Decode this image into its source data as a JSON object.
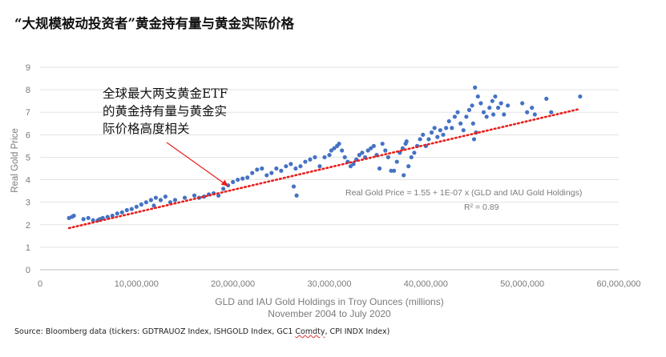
{
  "title": "“大规模被动投资者”黄金持有量与黄金实际价格",
  "source": {
    "prefix": "Source: Bloomberg data (tickers: GDTRAUOZ Index, ISHGOLD Index, GC1 ",
    "underlined": "Comdty",
    "suffix": ", CPI INDX Index)"
  },
  "chart_data": {
    "type": "scatter",
    "title": "“大规模被动投资者”黄金持有量与黄金实际价格",
    "xlabel": "GLD and IAU Gold Holdings in Troy Ounces (millions)",
    "xlabel2": "November 2004 to July 2020",
    "ylabel": "Real Gold Price",
    "xlim": [
      0,
      60000000
    ],
    "ylim": [
      0,
      9
    ],
    "xticks": [
      0,
      10000000,
      20000000,
      30000000,
      40000000,
      50000000,
      60000000
    ],
    "xtick_labels": [
      "0",
      "10,000,000",
      "20,000,000",
      "30,000,000",
      "40,000,000",
      "50,000,000",
      "60,000,000"
    ],
    "yticks": [
      0,
      1,
      2,
      3,
      4,
      5,
      6,
      7,
      8,
      9
    ],
    "ytick_labels": [
      "0",
      "1",
      "2",
      "3",
      "4",
      "5",
      "6",
      "7",
      "8",
      "9"
    ],
    "grid": "horizontal",
    "trendline": {
      "intercept": 1.55,
      "slope": 1e-07,
      "x_range": [
        3000000,
        56000000
      ],
      "style": "dotted",
      "color": "#e8201d"
    },
    "equation": "Real Gold Price = 1.55  + 1E-07 x (GLD and IAU Gold Holdings)",
    "r_squared": "R² = 0.89",
    "annotation": [
      "全球最大两支黄金ETF",
      "的黄金持有量与黄金实",
      "际价格高度相关"
    ],
    "point_color": "#4472c4",
    "points": [
      [
        3.0,
        2.3
      ],
      [
        3.3,
        2.35
      ],
      [
        3.5,
        2.4
      ],
      [
        4.5,
        2.25
      ],
      [
        5.0,
        2.3
      ],
      [
        5.5,
        2.2
      ],
      [
        6.0,
        2.2
      ],
      [
        6.2,
        2.25
      ],
      [
        6.5,
        2.3
      ],
      [
        7.0,
        2.35
      ],
      [
        7.5,
        2.4
      ],
      [
        8.0,
        2.5
      ],
      [
        8.5,
        2.55
      ],
      [
        9.0,
        2.65
      ],
      [
        9.5,
        2.7
      ],
      [
        10.0,
        2.8
      ],
      [
        10.5,
        2.9
      ],
      [
        11.0,
        3.0
      ],
      [
        11.5,
        3.1
      ],
      [
        12.0,
        3.2
      ],
      [
        11.8,
        2.85
      ],
      [
        12.5,
        3.1
      ],
      [
        13.0,
        3.25
      ],
      [
        13.5,
        3.0
      ],
      [
        14.0,
        3.1
      ],
      [
        15.0,
        3.2
      ],
      [
        16.0,
        3.3
      ],
      [
        16.5,
        3.2
      ],
      [
        17.0,
        3.25
      ],
      [
        17.5,
        3.35
      ],
      [
        18.0,
        3.4
      ],
      [
        18.5,
        3.3
      ],
      [
        19.0,
        3.6
      ],
      [
        19.5,
        3.75
      ],
      [
        20.0,
        3.9
      ],
      [
        20.5,
        4.0
      ],
      [
        21.0,
        4.05
      ],
      [
        21.5,
        4.1
      ],
      [
        22.0,
        4.3
      ],
      [
        22.5,
        4.45
      ],
      [
        23.0,
        4.5
      ],
      [
        23.5,
        4.2
      ],
      [
        24.0,
        4.3
      ],
      [
        24.5,
        4.5
      ],
      [
        25.0,
        4.4
      ],
      [
        25.5,
        4.6
      ],
      [
        26.0,
        4.7
      ],
      [
        26.5,
        4.5
      ],
      [
        26.3,
        3.7
      ],
      [
        26.6,
        3.3
      ],
      [
        27.0,
        4.6
      ],
      [
        27.5,
        4.8
      ],
      [
        28.0,
        4.9
      ],
      [
        28.5,
        5.0
      ],
      [
        29.0,
        4.6
      ],
      [
        29.5,
        5.0
      ],
      [
        30.0,
        5.1
      ],
      [
        30.2,
        5.3
      ],
      [
        30.5,
        5.4
      ],
      [
        30.8,
        5.5
      ],
      [
        31.0,
        5.6
      ],
      [
        31.3,
        5.3
      ],
      [
        31.6,
        5.0
      ],
      [
        31.9,
        4.8
      ],
      [
        32.2,
        4.6
      ],
      [
        32.5,
        4.7
      ],
      [
        32.8,
        4.9
      ],
      [
        33.1,
        5.1
      ],
      [
        33.4,
        5.2
      ],
      [
        33.7,
        5.0
      ],
      [
        34.0,
        5.3
      ],
      [
        34.3,
        5.4
      ],
      [
        34.6,
        5.5
      ],
      [
        34.9,
        5.1
      ],
      [
        35.2,
        4.5
      ],
      [
        35.5,
        5.6
      ],
      [
        35.8,
        5.3
      ],
      [
        36.1,
        5.0
      ],
      [
        36.4,
        4.4
      ],
      [
        36.7,
        4.4
      ],
      [
        37.0,
        4.8
      ],
      [
        37.3,
        5.2
      ],
      [
        37.6,
        5.4
      ],
      [
        37.9,
        5.6
      ],
      [
        38.0,
        5.7
      ],
      [
        37.7,
        4.2
      ],
      [
        38.2,
        4.6
      ],
      [
        38.5,
        5.0
      ],
      [
        38.8,
        5.2
      ],
      [
        39.1,
        5.5
      ],
      [
        39.4,
        5.8
      ],
      [
        39.7,
        6.0
      ],
      [
        40.0,
        5.5
      ],
      [
        40.3,
        5.8
      ],
      [
        40.6,
        6.1
      ],
      [
        40.9,
        6.3
      ],
      [
        41.2,
        5.9
      ],
      [
        41.5,
        6.2
      ],
      [
        41.8,
        6.0
      ],
      [
        42.1,
        6.3
      ],
      [
        42.4,
        6.6
      ],
      [
        42.7,
        6.3
      ],
      [
        43.0,
        6.8
      ],
      [
        43.3,
        7.0
      ],
      [
        43.6,
        6.5
      ],
      [
        43.9,
        6.2
      ],
      [
        44.2,
        6.8
      ],
      [
        44.5,
        7.1
      ],
      [
        44.8,
        7.3
      ],
      [
        45.1,
        8.1
      ],
      [
        45.4,
        7.7
      ],
      [
        45.7,
        7.4
      ],
      [
        46.0,
        7.0
      ],
      [
        46.3,
        6.8
      ],
      [
        46.6,
        7.2
      ],
      [
        46.9,
        7.5
      ],
      [
        47.2,
        7.7
      ],
      [
        47.5,
        7.2
      ],
      [
        47.8,
        7.4
      ],
      [
        48.1,
        6.9
      ],
      [
        44.9,
        6.5
      ],
      [
        45.2,
        6.1
      ],
      [
        45.0,
        5.8
      ],
      [
        47.0,
        6.9
      ],
      [
        48.5,
        7.3
      ],
      [
        50.0,
        7.4
      ],
      [
        50.5,
        7.0
      ],
      [
        51.0,
        7.2
      ],
      [
        51.3,
        6.9
      ],
      [
        52.5,
        7.6
      ],
      [
        53.0,
        7.0
      ],
      [
        56.0,
        7.7
      ]
    ]
  }
}
